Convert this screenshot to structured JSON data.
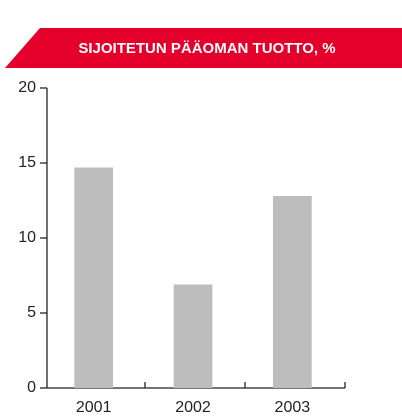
{
  "chart_data": {
    "type": "bar",
    "title": "SIJOITETUN PÄÄOMAN TUOTTO, %",
    "categories": [
      "2001",
      "2002",
      "2003"
    ],
    "values": [
      14.7,
      6.9,
      12.8
    ],
    "color": "#bdbdbd",
    "ylim": [
      0,
      20
    ],
    "yticks": [
      0,
      5,
      10,
      15,
      20
    ],
    "grid": false
  }
}
